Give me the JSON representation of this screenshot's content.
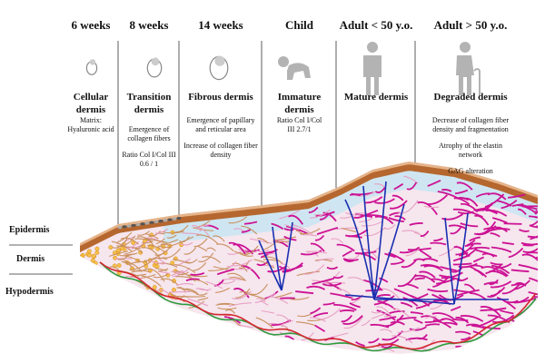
{
  "stages": [
    {
      "age": "6 weeks",
      "title": "Cellular dermis",
      "notes": [
        "Matrix: Hyaluronic acid"
      ]
    },
    {
      "age": "8 weeks",
      "title": "Transition dermis",
      "notes": [
        "Emergence of collagen fibers",
        "Ratio Col I/Col III 0.6 / 1"
      ]
    },
    {
      "age": "14 weeks",
      "title": "Fibrous dermis",
      "notes": [
        "Emergence of papillary and reticular area",
        "Increase of collagen fiber density"
      ]
    },
    {
      "age": "Child",
      "title": "Immature dermis",
      "notes": [
        "Ratio Col I/Col III 2.7/1"
      ]
    },
    {
      "age": "Adult < 50 y.o.",
      "title": "Mature dermis",
      "notes": []
    },
    {
      "age": "Adult > 50 y.o.",
      "title": "Degraded dermis",
      "notes": [
        "Decrease of collagen fiber density and fragmentation",
        "Atrophy of the elastin network",
        "GAG alteration"
      ]
    }
  ],
  "layers": [
    "Epidermis",
    "Dermis",
    "Hypodermis"
  ]
}
